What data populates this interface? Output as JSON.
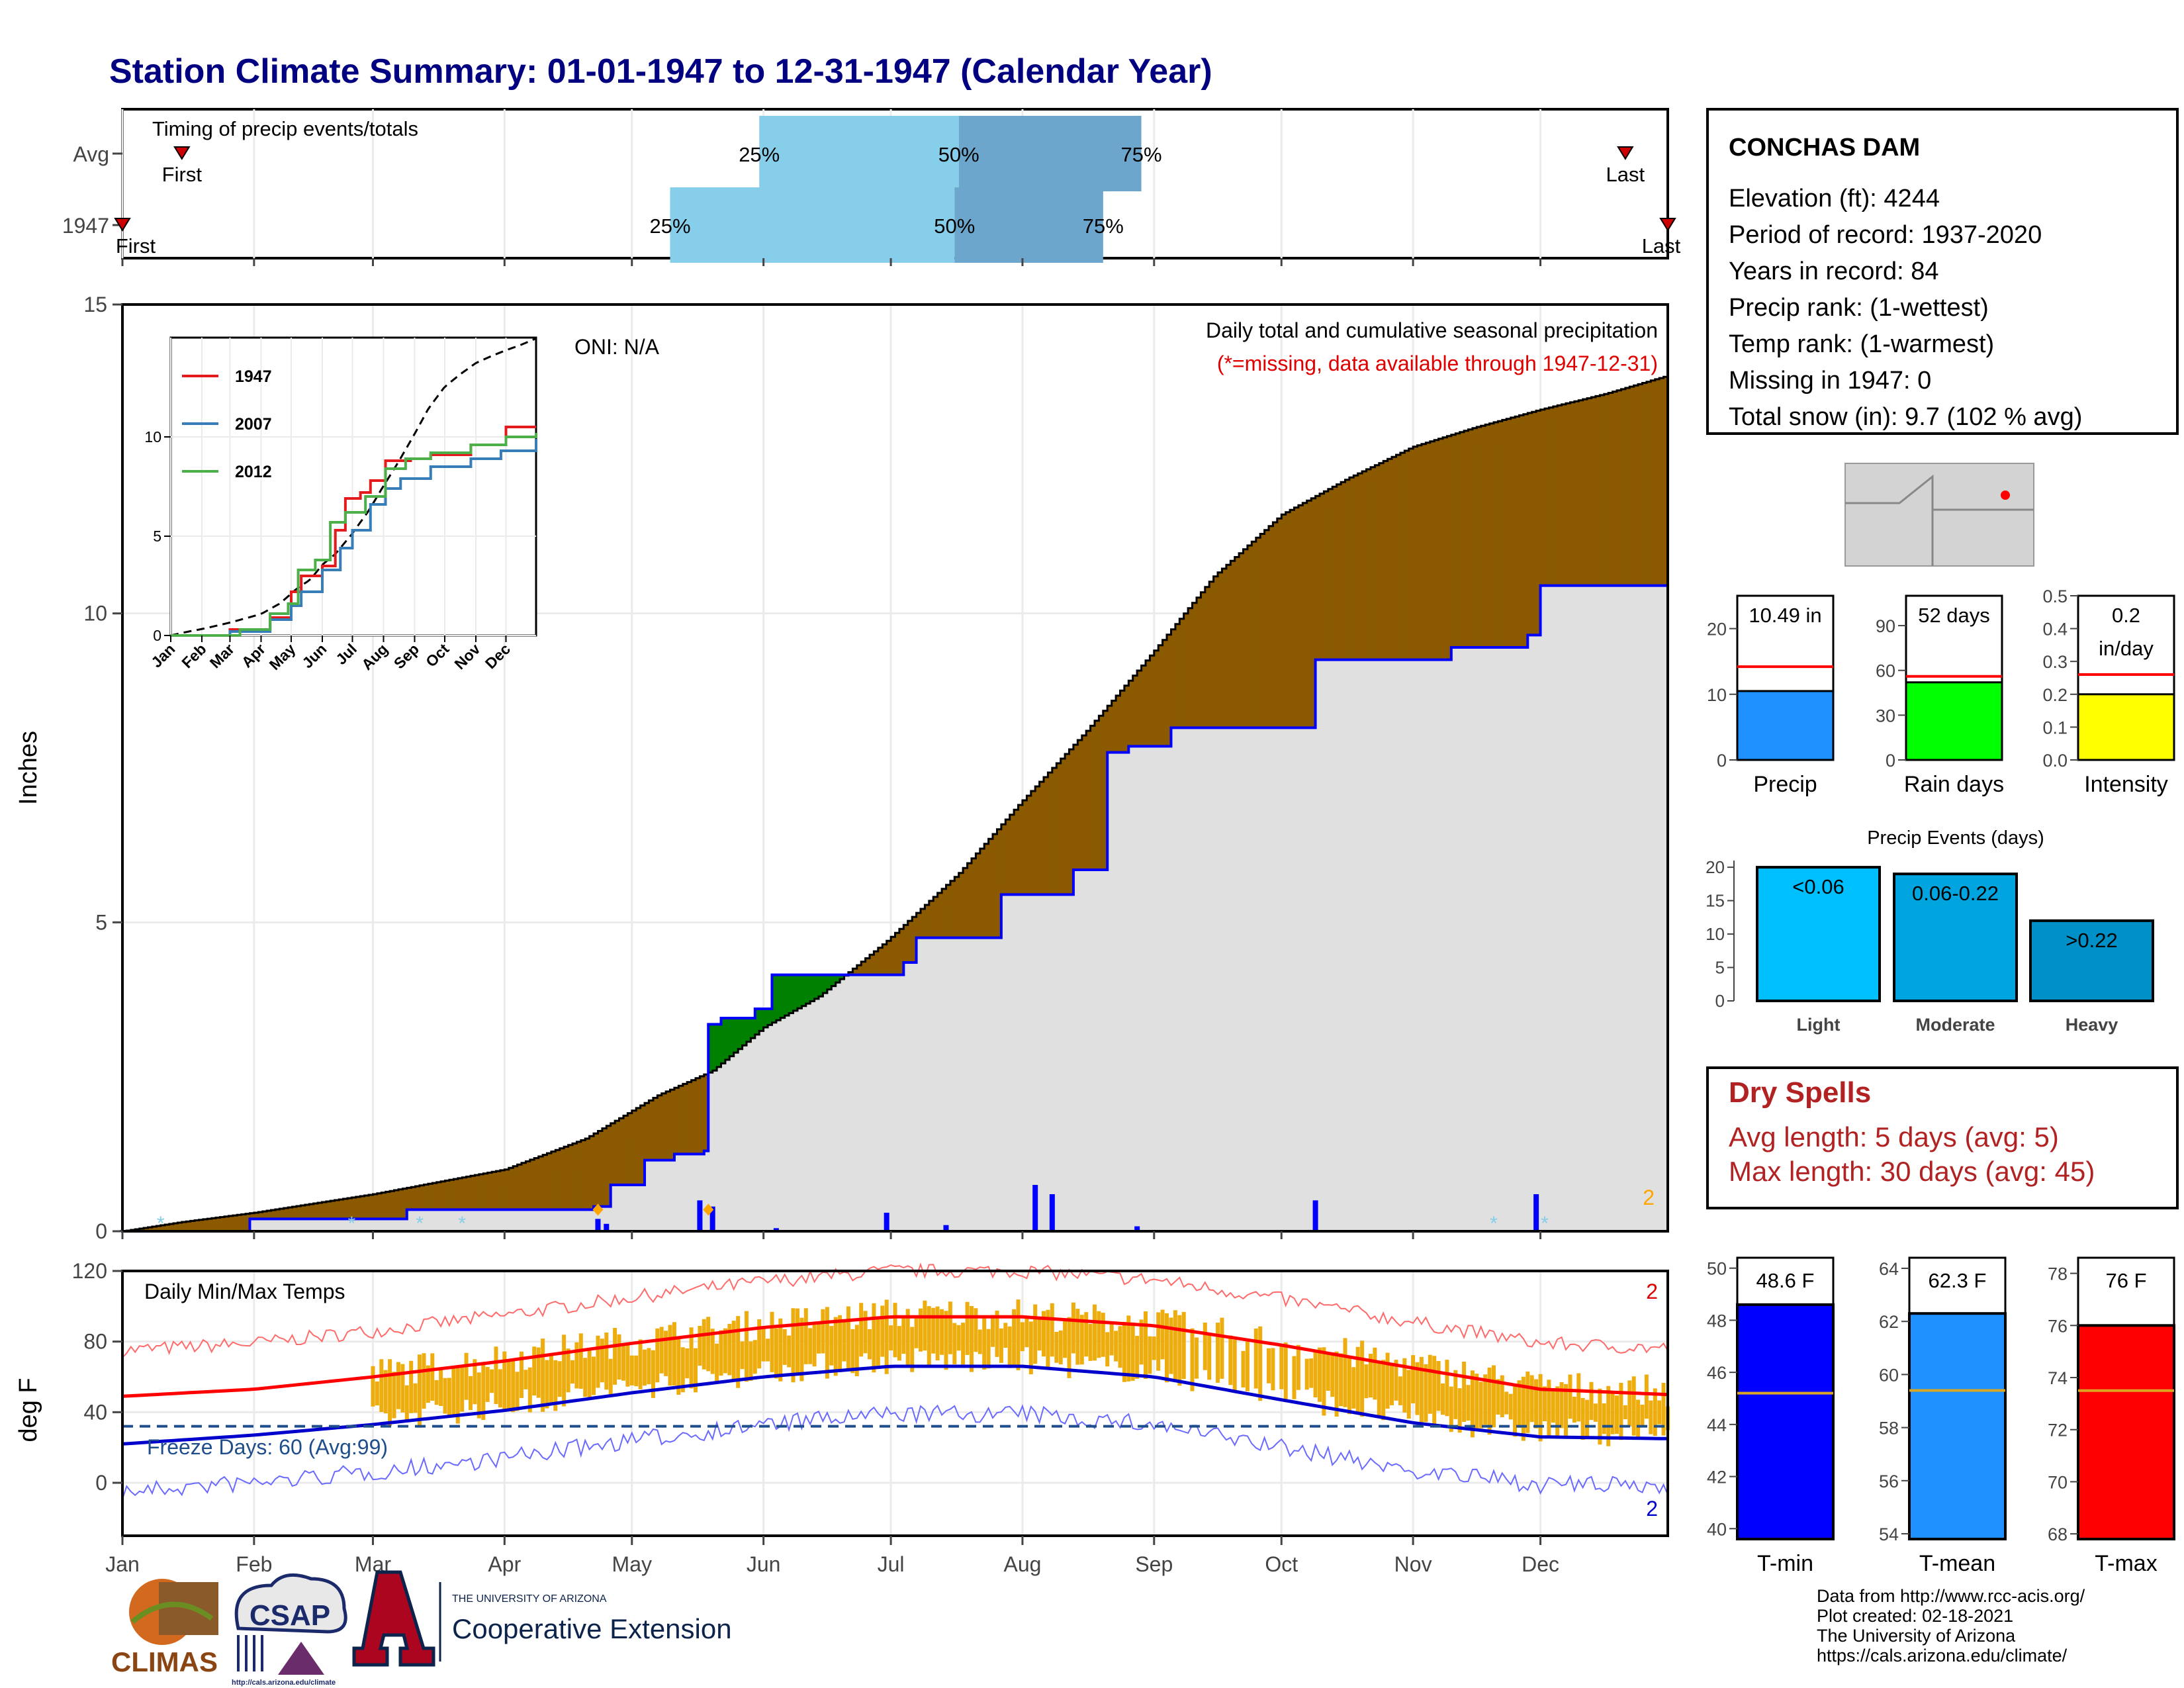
{
  "title": "Station Climate Summary: 01-01-1947 to 12-31-1947 (Calendar Year)",
  "colors": {
    "title": "#000080",
    "accum_fill": "#8B5A00",
    "accum_ahead": "#008000",
    "avg_area": "#E0E0E0",
    "line_blue": "#0000FF",
    "timing_light": "#87CEEB",
    "timing_dark": "#6CA6CD",
    "temp_bar": "#EEAD0E",
    "tmax_line": "#FF0000",
    "tmin_line": "#0000CD",
    "dry_spells": "#B22222"
  },
  "timing": {
    "title": "Timing of precip events/totals",
    "rows": [
      {
        "label": "Avg",
        "first": "First",
        "last": "Last",
        "q25": "25%",
        "q50": "50%",
        "q75": "75%",
        "first_doy": 15,
        "last_doy": 355,
        "q25_doy": 151,
        "q50_doy": 198,
        "q75_doy": 241
      },
      {
        "label": "1947",
        "first": "First",
        "last": "Last",
        "q25": "25%",
        "q50": "50%",
        "q75": "75%",
        "first_doy": 1,
        "last_doy": 365,
        "q25_doy": 130,
        "q50_doy": 197,
        "q75_doy": 232
      }
    ]
  },
  "precip_panel": {
    "ylabel": "Inches",
    "annotation_title": "Daily total and cumulative seasonal precipitation",
    "annotation_missing": "(*=missing, data available through 1947-12-31)",
    "oni": "ONI: N/A",
    "missing_count": "2",
    "yticks": [
      "0",
      "5",
      "10",
      "15"
    ]
  },
  "inset": {
    "legend": [
      "1947",
      "2007",
      "2012"
    ],
    "series_colors": [
      "#E41A1C",
      "#377EB8",
      "#4DAF4A"
    ],
    "yticks": [
      "0",
      "5",
      "10"
    ],
    "months": [
      "Jan",
      "Feb",
      "Mar",
      "Apr",
      "May",
      "Jun",
      "Jul",
      "Aug",
      "Sep",
      "Oct",
      "Nov",
      "Dec"
    ]
  },
  "temp_panel": {
    "ylabel": "deg F",
    "title": "Daily Min/Max Temps",
    "freeze": "Freeze Days: 60 (Avg:99)",
    "max_missing": "2",
    "min_missing": "2",
    "yticks": [
      "0",
      "40",
      "80",
      "120"
    ]
  },
  "months": [
    "Jan",
    "Feb",
    "Mar",
    "Apr",
    "May",
    "Jun",
    "Jul",
    "Aug",
    "Sep",
    "Oct",
    "Nov",
    "Dec"
  ],
  "station": {
    "name": "CONCHAS DAM",
    "lines": [
      "Elevation (ft): 4244",
      "Period of record: 1937-2020",
      "Years in record: 84",
      "Precip rank:  (1-wettest)",
      "Temp rank:  (1-warmest)",
      "Missing in 1947: 0",
      "Total snow (in): 9.7 (102 % avg)"
    ]
  },
  "precip_bars": [
    {
      "label": "Precip",
      "value_label": "10.49 in",
      "value": 10.49,
      "avg": 14.2,
      "ymax": 25,
      "yticks": [
        "0",
        "10",
        "20"
      ],
      "tick_vals": [
        0,
        10,
        20
      ],
      "color": "#1E90FF"
    },
    {
      "label": "Rain days",
      "value_label": "52 days",
      "value": 52,
      "avg": 56,
      "ymax": 110,
      "yticks": [
        "0",
        "30",
        "60",
        "90"
      ],
      "tick_vals": [
        0,
        30,
        60,
        90
      ],
      "color": "#00FF00"
    },
    {
      "label": "Intensity",
      "value_label": "0.2\nin/day",
      "value": 0.2,
      "avg": 0.26,
      "ymax": 0.5,
      "yticks": [
        "0.0",
        "0.1",
        "0.2",
        "0.3",
        "0.4",
        "0.5"
      ],
      "tick_vals": [
        0,
        0.1,
        0.2,
        0.3,
        0.4,
        0.5
      ],
      "color": "#FFFF00"
    }
  ],
  "events": {
    "title": "Precip Events (days)",
    "yticks": [
      "0",
      "5",
      "10",
      "15",
      "20"
    ],
    "bars": [
      {
        "label": "Light",
        "bar_label": "<0.06",
        "value": 20,
        "color": "#00BFFF"
      },
      {
        "label": "Moderate",
        "bar_label": "0.06-0.22",
        "value": 19,
        "color": "#00A5E0"
      },
      {
        "label": "Heavy",
        "bar_label": ">0.22",
        "value": 12,
        "color": "#0090C8"
      }
    ]
  },
  "dry_spells": {
    "title": "Dry Spells",
    "avg": "Avg length: 5 days (avg: 5)",
    "max": "Max length: 30 days (avg: 45)"
  },
  "temp_bars": [
    {
      "label": "T-min",
      "value_label": "48.6 F",
      "value": 48.6,
      "avg": 45.2,
      "ymin": 39.6,
      "ymax": 50.4,
      "yticks": [
        "40",
        "42",
        "44",
        "46",
        "48",
        "50"
      ],
      "tick_vals": [
        40,
        42,
        44,
        46,
        48,
        50
      ],
      "color": "#0000FF"
    },
    {
      "label": "T-mean",
      "value_label": "62.3 F",
      "value": 62.3,
      "avg": 59.4,
      "ymin": 53.8,
      "ymax": 64.4,
      "yticks": [
        "54",
        "56",
        "58",
        "60",
        "62",
        "64"
      ],
      "tick_vals": [
        54,
        56,
        58,
        60,
        62,
        64
      ],
      "color": "#1E90FF"
    },
    {
      "label": "T-max",
      "value_label": "76 F",
      "value": 76,
      "avg": 73.5,
      "ymin": 67.8,
      "ymax": 78.6,
      "yticks": [
        "68",
        "70",
        "72",
        "74",
        "76",
        "78"
      ],
      "tick_vals": [
        68,
        70,
        72,
        74,
        76,
        78
      ],
      "color": "#FF0000"
    }
  ],
  "footer": {
    "credits": [
      "Data from http://www.rcc-acis.org/",
      "Plot created: 02-18-2021",
      "The University of Arizona",
      "https://cals.arizona.edu/climate/"
    ],
    "logo_climas": "CLIMAS",
    "logo_csap": "CSAP",
    "logo_csap_url": "http://cals.arizona.edu/climate",
    "logo_ua_small": "THE UNIVERSITY OF ARIZONA",
    "logo_ua_big": "Cooperative Extension"
  },
  "chart_data": {
    "type": "area",
    "title": "Station Climate Summary: 01-01-1947 to 12-31-1947 (Calendar Year)",
    "xlabel": "",
    "ylabel": "Inches",
    "x_range": [
      "1947-01-01",
      "1947-12-31"
    ],
    "ylim": [
      0,
      15
    ],
    "x_months": [
      "Jan",
      "Feb",
      "Mar",
      "Apr",
      "May",
      "Jun",
      "Jul",
      "Aug",
      "Sep",
      "Oct",
      "Nov",
      "Dec"
    ],
    "series": [
      {
        "name": "Avg",
        "points": [
          [
            1,
            0
          ],
          [
            15,
            0.15
          ],
          [
            32,
            0.3
          ],
          [
            60,
            0.6
          ],
          [
            91,
            1.0
          ],
          [
            110,
            1.5
          ],
          [
            127,
            2.2
          ],
          [
            140,
            2.6
          ],
          [
            152,
            3.3
          ],
          [
            165,
            3.8
          ],
          [
            181,
            4.7
          ],
          [
            198,
            5.8
          ],
          [
            212,
            6.9
          ],
          [
            228,
            8.1
          ],
          [
            244,
            9.4
          ],
          [
            258,
            10.6
          ],
          [
            274,
            11.6
          ],
          [
            290,
            12.2
          ],
          [
            305,
            12.7
          ],
          [
            319,
            13.0
          ],
          [
            335,
            13.3
          ],
          [
            350,
            13.55
          ],
          [
            365,
            13.85
          ]
        ]
      },
      {
        "name": "1947",
        "points": [
          [
            1,
            0
          ],
          [
            31,
            0.2
          ],
          [
            61,
            0.2
          ],
          [
            68,
            0.35
          ],
          [
            112,
            0.4
          ],
          [
            116,
            0.75
          ],
          [
            124,
            1.15
          ],
          [
            131,
            1.25
          ],
          [
            138,
            1.3
          ],
          [
            139,
            3.35
          ],
          [
            142,
            3.45
          ],
          [
            150,
            3.6
          ],
          [
            154,
            4.15
          ],
          [
            175,
            4.15
          ],
          [
            185,
            4.35
          ],
          [
            188,
            4.75
          ],
          [
            208,
            5.45
          ],
          [
            222,
            5.45
          ],
          [
            225,
            5.85
          ],
          [
            232,
            5.85
          ],
          [
            233,
            7.75
          ],
          [
            238,
            7.85
          ],
          [
            248,
            8.15
          ],
          [
            278,
            8.15
          ],
          [
            282,
            9.25
          ],
          [
            314,
            9.45
          ],
          [
            332,
            9.65
          ],
          [
            335,
            10.45
          ],
          [
            365,
            10.49
          ]
        ]
      }
    ],
    "daily_precip": [
      {
        "doy": 1,
        "value": 0.02
      },
      {
        "doy": 113,
        "value": 0.2
      },
      {
        "doy": 115,
        "value": 0.12
      },
      {
        "doy": 137,
        "value": 0.5
      },
      {
        "doy": 140,
        "value": 0.4
      },
      {
        "doy": 155,
        "value": 0.05
      },
      {
        "doy": 181,
        "value": 0.3
      },
      {
        "doy": 195,
        "value": 0.1
      },
      {
        "doy": 216,
        "value": 0.75
      },
      {
        "doy": 220,
        "value": 0.6
      },
      {
        "doy": 240,
        "value": 0.08
      },
      {
        "doy": 282,
        "value": 0.5
      },
      {
        "doy": 334,
        "value": 0.6
      }
    ],
    "temps": {
      "ylabel": "deg F",
      "ylim": [
        -30,
        120
      ],
      "avg_tmax": [
        [
          1,
          49
        ],
        [
          32,
          53
        ],
        [
          60,
          60
        ],
        [
          91,
          69
        ],
        [
          121,
          79
        ],
        [
          152,
          88
        ],
        [
          182,
          94
        ],
        [
          213,
          94
        ],
        [
          244,
          89
        ],
        [
          274,
          78
        ],
        [
          305,
          65
        ],
        [
          335,
          53
        ],
        [
          365,
          50
        ]
      ],
      "avg_tmin": [
        [
          1,
          22
        ],
        [
          32,
          27
        ],
        [
          60,
          33
        ],
        [
          91,
          41
        ],
        [
          121,
          51
        ],
        [
          152,
          60
        ],
        [
          182,
          66
        ],
        [
          213,
          66
        ],
        [
          244,
          60
        ],
        [
          274,
          47
        ],
        [
          305,
          34
        ],
        [
          335,
          26
        ],
        [
          365,
          25
        ]
      ],
      "freeze_line": 32
    },
    "summary_bars": {
      "categories": [
        "Precip",
        "Rain days",
        "Intensity"
      ],
      "values": [
        10.49,
        52,
        0.2
      ]
    },
    "precip_events": {
      "categories": [
        "Light",
        "Moderate",
        "Heavy"
      ],
      "values": [
        20,
        19,
        12
      ]
    },
    "temp_summary": {
      "categories": [
        "T-min",
        "T-mean",
        "T-max"
      ],
      "values": [
        48.6,
        62.3,
        76
      ]
    }
  }
}
